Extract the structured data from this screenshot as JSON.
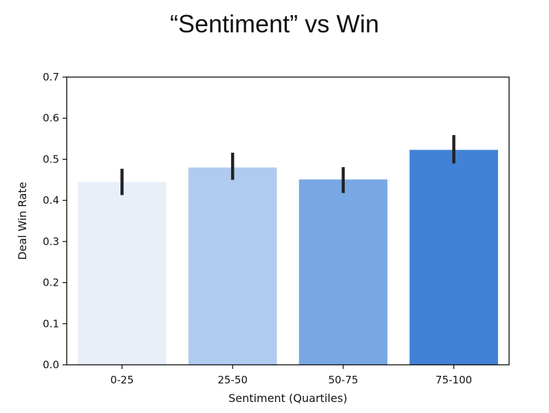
{
  "chart_data": {
    "type": "bar",
    "title": "“Sentiment” vs Win",
    "xlabel": "Sentiment (Quartiles)",
    "ylabel": "Deal Win Rate",
    "categories": [
      "0-25",
      "25-50",
      "50-75",
      "75-100"
    ],
    "values": [
      0.445,
      0.48,
      0.451,
      0.523
    ],
    "error_bars": [
      [
        0.413,
        0.477
      ],
      [
        0.45,
        0.516
      ],
      [
        0.418,
        0.481
      ],
      [
        0.49,
        0.559
      ]
    ],
    "bar_colors": [
      "#e8eff9",
      "#b1cbf0",
      "#79a7e3",
      "#4282d6"
    ],
    "error_color": "#222222",
    "ylim": [
      0,
      0.7
    ],
    "yticks": [
      "0.0",
      "0.1",
      "0.2",
      "0.3",
      "0.4",
      "0.5",
      "0.6",
      "0.7"
    ],
    "grid": false,
    "legend": "none"
  }
}
